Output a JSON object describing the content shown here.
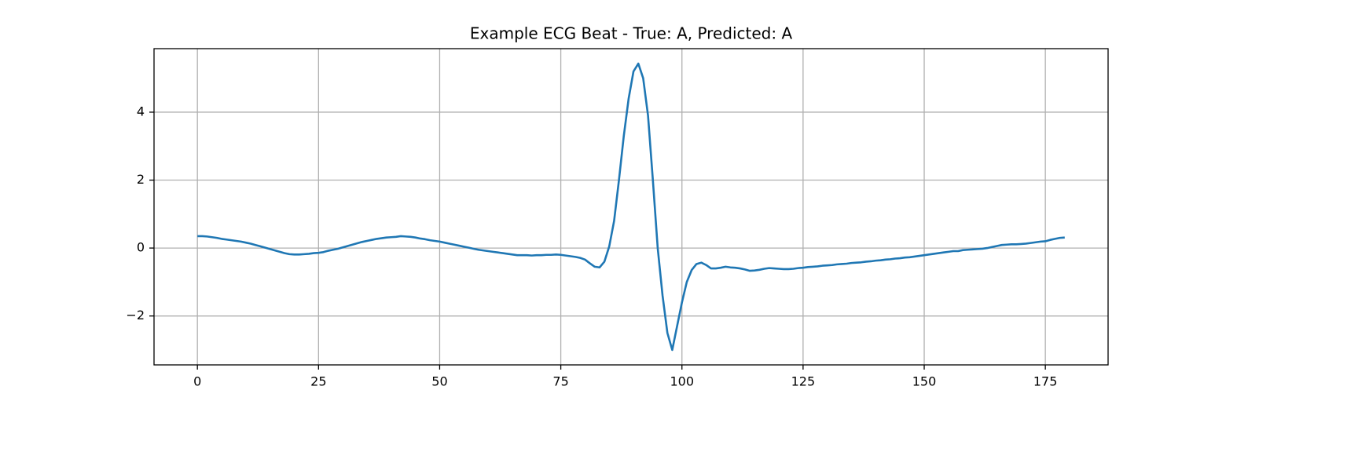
{
  "chart_data": {
    "type": "line",
    "title": "Example ECG Beat - True: A, Predicted: A",
    "x": [
      0,
      1,
      2,
      3,
      4,
      5,
      6,
      7,
      8,
      9,
      10,
      11,
      12,
      13,
      14,
      15,
      16,
      17,
      18,
      19,
      20,
      21,
      22,
      23,
      24,
      25,
      26,
      27,
      28,
      29,
      30,
      31,
      32,
      33,
      34,
      35,
      36,
      37,
      38,
      39,
      40,
      41,
      42,
      43,
      44,
      45,
      46,
      47,
      48,
      49,
      50,
      51,
      52,
      53,
      54,
      55,
      56,
      57,
      58,
      59,
      60,
      61,
      62,
      63,
      64,
      65,
      66,
      67,
      68,
      69,
      70,
      71,
      72,
      73,
      74,
      75,
      76,
      77,
      78,
      79,
      80,
      81,
      82,
      83,
      84,
      85,
      86,
      87,
      88,
      89,
      90,
      91,
      92,
      93,
      94,
      95,
      96,
      97,
      98,
      99,
      100,
      101,
      102,
      103,
      104,
      105,
      106,
      107,
      108,
      109,
      110,
      111,
      112,
      113,
      114,
      115,
      116,
      117,
      118,
      119,
      120,
      121,
      122,
      123,
      124,
      125,
      126,
      127,
      128,
      129,
      130,
      131,
      132,
      133,
      134,
      135,
      136,
      137,
      138,
      139,
      140,
      141,
      142,
      143,
      144,
      145,
      146,
      147,
      148,
      149,
      150,
      151,
      152,
      153,
      154,
      155,
      156,
      157,
      158,
      159,
      160,
      161,
      162,
      163,
      164,
      165,
      166,
      167,
      168,
      169,
      170,
      171,
      172,
      173,
      174,
      175,
      176,
      177,
      178,
      179
    ],
    "values": [
      0.35,
      0.35,
      0.34,
      0.32,
      0.3,
      0.27,
      0.25,
      0.23,
      0.21,
      0.19,
      0.16,
      0.13,
      0.09,
      0.05,
      0.01,
      -0.03,
      -0.07,
      -0.11,
      -0.15,
      -0.18,
      -0.19,
      -0.19,
      -0.18,
      -0.17,
      -0.15,
      -0.14,
      -0.12,
      -0.08,
      -0.05,
      -0.02,
      0.02,
      0.06,
      0.1,
      0.14,
      0.18,
      0.21,
      0.24,
      0.27,
      0.29,
      0.31,
      0.32,
      0.33,
      0.35,
      0.34,
      0.33,
      0.31,
      0.28,
      0.26,
      0.23,
      0.21,
      0.19,
      0.16,
      0.13,
      0.1,
      0.07,
      0.04,
      0.01,
      -0.02,
      -0.05,
      -0.07,
      -0.09,
      -0.11,
      -0.13,
      -0.15,
      -0.17,
      -0.19,
      -0.21,
      -0.21,
      -0.21,
      -0.22,
      -0.21,
      -0.21,
      -0.2,
      -0.2,
      -0.19,
      -0.2,
      -0.22,
      -0.24,
      -0.26,
      -0.29,
      -0.34,
      -0.45,
      -0.55,
      -0.57,
      -0.4,
      0.05,
      0.8,
      2.0,
      3.3,
      4.4,
      5.2,
      5.43,
      5.0,
      3.9,
      2.0,
      0.0,
      -1.4,
      -2.5,
      -3.0,
      -2.3,
      -1.6,
      -1.0,
      -0.65,
      -0.47,
      -0.43,
      -0.5,
      -0.6,
      -0.6,
      -0.58,
      -0.55,
      -0.57,
      -0.58,
      -0.6,
      -0.63,
      -0.67,
      -0.66,
      -0.64,
      -0.61,
      -0.59,
      -0.6,
      -0.61,
      -0.62,
      -0.62,
      -0.61,
      -0.59,
      -0.58,
      -0.56,
      -0.55,
      -0.54,
      -0.52,
      -0.51,
      -0.5,
      -0.48,
      -0.47,
      -0.46,
      -0.44,
      -0.43,
      -0.42,
      -0.4,
      -0.39,
      -0.37,
      -0.36,
      -0.34,
      -0.33,
      -0.31,
      -0.3,
      -0.28,
      -0.27,
      -0.25,
      -0.23,
      -0.21,
      -0.19,
      -0.17,
      -0.15,
      -0.13,
      -0.11,
      -0.09,
      -0.09,
      -0.06,
      -0.05,
      -0.04,
      -0.03,
      -0.02,
      0.0,
      0.03,
      0.06,
      0.09,
      0.1,
      0.11,
      0.11,
      0.12,
      0.13,
      0.15,
      0.17,
      0.19,
      0.2,
      0.24,
      0.27,
      0.3,
      0.31
    ],
    "color": "#1f77b4",
    "xlim": [
      -8.95,
      187.95
    ],
    "xticks": [
      0,
      25,
      50,
      75,
      100,
      125,
      150,
      175
    ],
    "ylim": [
      -3.44,
      5.87
    ],
    "yticks": [
      {
        "value": -2,
        "label": "−2"
      },
      0,
      2,
      4
    ],
    "grid": true
  }
}
